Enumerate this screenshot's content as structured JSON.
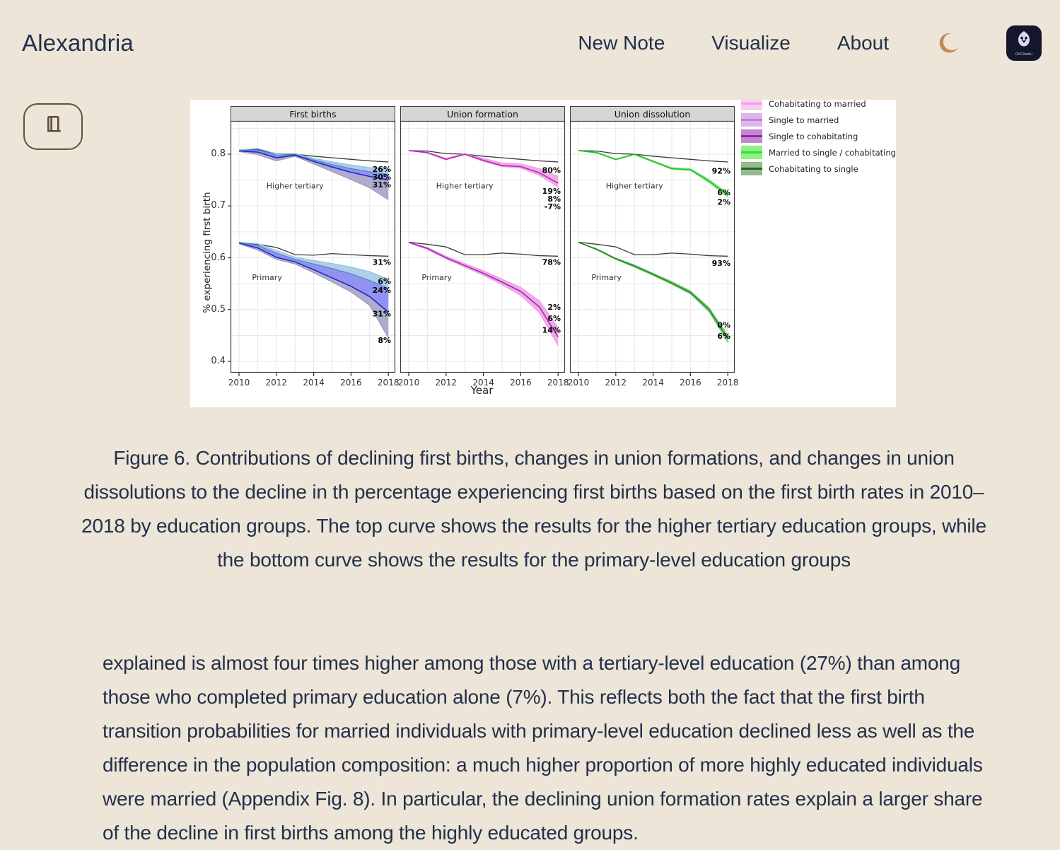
{
  "app": {
    "title": "Alexandria"
  },
  "nav": {
    "new_note": "New Note",
    "visualize": "Visualize",
    "about": "About",
    "logo_text": "GitCitadel"
  },
  "colors": {
    "background": "#ede5d8",
    "text": "#22304a",
    "moon": "#bf8a50",
    "logo_bg": "#14172b",
    "reader_border": "#64513a",
    "figure_bg": "#ffffff"
  },
  "figure": {
    "caption": "Figure 6. Contributions of declining first births, changes in union formations, and changes in union dissolutions to the decline in th percentage experiencing first births based on the first birth rates in 2010–2018 by education groups. The top curve shows the results for the higher tertiary education groups, while the bottom curve shows the results for the primary-level education groups"
  },
  "article": {
    "paragraph": "explained is almost four times higher among those with a tertiary-level education (27%) than among those who completed primary education alone (7%). This reflects both the fact that the first birth transition probabilities for married individuals with primary-level education declined less as well as the difference in the population composition: a much higher proportion of more highly educated individuals were married (Appendix Fig. 8). In",
    "paragraph_continued": "particular, the declining union formation rates explain a larger share of the decline in first births among the highly educated groups."
  },
  "chart_data": {
    "type": "line",
    "xlabel": "Year",
    "ylabel": "% experiencing first birth",
    "x": [
      2010,
      2011,
      2012,
      2013,
      2014,
      2015,
      2016,
      2017,
      2018
    ],
    "x_ticks": [
      2010,
      2012,
      2014,
      2016,
      2018
    ],
    "y_ticks": [
      0.8,
      0.7,
      0.6,
      0.5,
      0.4
    ],
    "ylim": [
      0.38,
      0.86
    ],
    "grid": true,
    "legend_position": "top-right",
    "legend": [
      {
        "label": "Cohabitating to married",
        "fill": "#f9cef3",
        "line": "#f2a0e0"
      },
      {
        "label": "Single to married",
        "fill": "#ddb7e8",
        "line": "#c07fd4"
      },
      {
        "label": "Single to cohabitating",
        "fill": "#c287d0",
        "line": "#8e2a9e"
      },
      {
        "label": "Married to single / cohabitating",
        "fill": "#8df281",
        "line": "#3cd83c"
      },
      {
        "label": "Cohabitating to single",
        "fill": "#93bc8e",
        "line": "#2c5e2e"
      }
    ],
    "panels": [
      {
        "title": "First births",
        "groups": [
          {
            "label": "Higher tertiary",
            "label_pos": {
              "x": 2013,
              "v": 0.734
            },
            "ref": [
              0.807,
              0.809,
              0.801,
              0.8,
              0.796,
              0.793,
              0.79,
              0.787,
              0.785
            ],
            "bands": [
              {
                "fill": "#a9cde6",
                "top": [
                  0.808,
                  0.811,
                  0.801,
                  0.801,
                  0.792,
                  0.785,
                  0.779,
                  0.774,
                  0.771
                ],
                "bottom": [
                  0.807,
                  0.808,
                  0.798,
                  0.799,
                  0.789,
                  0.78,
                  0.772,
                  0.766,
                  0.761
                ]
              },
              {
                "fill": "#8a8df0",
                "top": [
                  0.807,
                  0.808,
                  0.798,
                  0.799,
                  0.789,
                  0.78,
                  0.772,
                  0.766,
                  0.761
                ],
                "bottom": [
                  0.806,
                  0.804,
                  0.793,
                  0.798,
                  0.786,
                  0.775,
                  0.765,
                  0.757,
                  0.75
                ]
              },
              {
                "fill": "#aaa8c8",
                "top": [
                  0.806,
                  0.804,
                  0.793,
                  0.798,
                  0.786,
                  0.775,
                  0.765,
                  0.757,
                  0.75
                ],
                "bottom": [
                  0.805,
                  0.799,
                  0.787,
                  0.796,
                  0.781,
                  0.766,
                  0.751,
                  0.735,
                  0.712
                ]
              }
            ],
            "lines": [
              {
                "color": "#8fc2e2",
                "width": 1.2,
                "values": [
                  0.808,
                  0.811,
                  0.801,
                  0.801,
                  0.792,
                  0.785,
                  0.779,
                  0.774,
                  0.771
                ]
              },
              {
                "color": "#5b80c0",
                "width": 1.2,
                "values": [
                  0.807,
                  0.808,
                  0.798,
                  0.799,
                  0.789,
                  0.78,
                  0.772,
                  0.766,
                  0.761
                ]
              },
              {
                "color": "#2127cc",
                "width": 1.6,
                "values": [
                  0.806,
                  0.804,
                  0.793,
                  0.798,
                  0.786,
                  0.775,
                  0.765,
                  0.757,
                  0.75
                ]
              },
              {
                "color": "#9a98b8",
                "width": 1.1,
                "values": [
                  0.805,
                  0.799,
                  0.787,
                  0.796,
                  0.781,
                  0.766,
                  0.751,
                  0.735,
                  0.712
                ]
              }
            ],
            "annotations": [
              {
                "label": "26%",
                "v": 0.771
              },
              {
                "label": "30%",
                "v": 0.756
              },
              {
                "label": "31%",
                "v": 0.741
              }
            ]
          },
          {
            "label": "Primary",
            "label_pos": {
              "x": 2011.5,
              "v": 0.557
            },
            "ref": [
              0.63,
              0.626,
              0.62,
              0.606,
              0.605,
              0.608,
              0.606,
              0.604,
              0.603
            ],
            "bands": [
              {
                "fill": "#a9cde6",
                "top": [
                  0.63,
                  0.627,
                  0.614,
                  0.601,
                  0.595,
                  0.589,
                  0.582,
                  0.573,
                  0.559
                ],
                "bottom": [
                  0.629,
                  0.624,
                  0.609,
                  0.597,
                  0.588,
                  0.579,
                  0.569,
                  0.556,
                  0.541
                ]
              },
              {
                "fill": "#8a8df0",
                "top": [
                  0.629,
                  0.624,
                  0.609,
                  0.597,
                  0.588,
                  0.579,
                  0.569,
                  0.556,
                  0.541
                ],
                "bottom": [
                  0.628,
                  0.619,
                  0.601,
                  0.592,
                  0.577,
                  0.561,
                  0.545,
                  0.525,
                  0.495
                ]
              },
              {
                "fill": "#aaa8c8",
                "top": [
                  0.628,
                  0.619,
                  0.601,
                  0.592,
                  0.577,
                  0.561,
                  0.545,
                  0.525,
                  0.495
                ],
                "bottom": [
                  0.627,
                  0.615,
                  0.597,
                  0.588,
                  0.571,
                  0.553,
                  0.534,
                  0.508,
                  0.445
                ]
              }
            ],
            "lines": [
              {
                "color": "#8fc2e2",
                "width": 1.2,
                "values": [
                  0.63,
                  0.627,
                  0.614,
                  0.601,
                  0.595,
                  0.589,
                  0.582,
                  0.573,
                  0.559
                ]
              },
              {
                "color": "#5b80c0",
                "width": 1.2,
                "values": [
                  0.629,
                  0.624,
                  0.609,
                  0.597,
                  0.588,
                  0.579,
                  0.569,
                  0.556,
                  0.541
                ]
              },
              {
                "color": "#2127cc",
                "width": 1.6,
                "values": [
                  0.628,
                  0.619,
                  0.601,
                  0.592,
                  0.577,
                  0.561,
                  0.545,
                  0.525,
                  0.495
                ]
              },
              {
                "color": "#9a98b8",
                "width": 1.1,
                "values": [
                  0.627,
                  0.615,
                  0.597,
                  0.588,
                  0.571,
                  0.553,
                  0.534,
                  0.508,
                  0.445
                ]
              }
            ],
            "annotations": [
              {
                "label": "31%",
                "v": 0.592
              },
              {
                "label": "6%",
                "v": 0.555
              },
              {
                "label": "24%",
                "v": 0.538
              },
              {
                "label": "31%",
                "v": 0.492
              },
              {
                "label": "8%",
                "v": 0.441
              }
            ]
          }
        ]
      },
      {
        "title": "Union formation",
        "groups": [
          {
            "label": "Higher tertiary",
            "label_pos": {
              "x": 2013,
              "v": 0.734
            },
            "ref": [
              0.807,
              0.806,
              0.801,
              0.8,
              0.796,
              0.793,
              0.79,
              0.787,
              0.785
            ],
            "bands": [
              {
                "fill": "#f2a9e6",
                "top": [
                  0.807,
                  0.804,
                  0.792,
                  0.801,
                  0.792,
                  0.783,
                  0.781,
                  0.772,
                  0.757
                ],
                "bottom": [
                  0.807,
                  0.802,
                  0.789,
                  0.799,
                  0.786,
                  0.776,
                  0.773,
                  0.759,
                  0.737
                ]
              }
            ],
            "lines": [
              {
                "color": "#ee97e2",
                "width": 1.0,
                "values": [
                  0.807,
                  0.804,
                  0.792,
                  0.801,
                  0.792,
                  0.783,
                  0.781,
                  0.772,
                  0.757
                ]
              },
              {
                "color": "#ee97e2",
                "width": 1.0,
                "values": [
                  0.807,
                  0.802,
                  0.789,
                  0.799,
                  0.786,
                  0.776,
                  0.773,
                  0.759,
                  0.737
                ]
              },
              {
                "color": "#bb2cbb",
                "width": 1.7,
                "values": [
                  0.807,
                  0.803,
                  0.79,
                  0.8,
                  0.788,
                  0.778,
                  0.776,
                  0.764,
                  0.744
                ]
              }
            ],
            "annotations": [
              {
                "label": "80%",
                "v": 0.769
              },
              {
                "label": "19%",
                "v": 0.729
              },
              {
                "label": "8%",
                "v": 0.714
              },
              {
                "label": "-7%",
                "v": 0.699
              }
            ]
          },
          {
            "label": "Primary",
            "label_pos": {
              "x": 2011.5,
              "v": 0.557
            },
            "ref": [
              0.63,
              0.626,
              0.621,
              0.606,
              0.606,
              0.609,
              0.607,
              0.604,
              0.603
            ],
            "bands": [
              {
                "fill": "#f0a9e8",
                "top": [
                  0.63,
                  0.62,
                  0.603,
                  0.589,
                  0.575,
                  0.559,
                  0.543,
                  0.517,
                  0.465
                ],
                "bottom": [
                  0.629,
                  0.616,
                  0.598,
                  0.582,
                  0.566,
                  0.548,
                  0.527,
                  0.494,
                  0.43
                ]
              }
            ],
            "lines": [
              {
                "color": "#ee97e2",
                "width": 1.0,
                "values": [
                  0.63,
                  0.62,
                  0.603,
                  0.589,
                  0.575,
                  0.559,
                  0.543,
                  0.517,
                  0.465
                ]
              },
              {
                "color": "#ee97e2",
                "width": 1.0,
                "values": [
                  0.629,
                  0.616,
                  0.598,
                  0.582,
                  0.566,
                  0.548,
                  0.527,
                  0.494,
                  0.43
                ]
              },
              {
                "color": "#a62cb4",
                "width": 1.7,
                "values": [
                  0.63,
                  0.618,
                  0.6,
                  0.585,
                  0.57,
                  0.553,
                  0.535,
                  0.505,
                  0.447
                ]
              }
            ],
            "annotations": [
              {
                "label": "78%",
                "v": 0.592
              },
              {
                "label": "2%",
                "v": 0.505
              },
              {
                "label": "6%",
                "v": 0.483
              },
              {
                "label": "14%",
                "v": 0.461
              }
            ]
          }
        ]
      },
      {
        "title": "Union dissolution",
        "groups": [
          {
            "label": "Higher tertiary",
            "label_pos": {
              "x": 2013,
              "v": 0.734
            },
            "ref": [
              0.807,
              0.806,
              0.801,
              0.8,
              0.796,
              0.793,
              0.79,
              0.787,
              0.785
            ],
            "bands": [
              {
                "fill": "#8fe08f",
                "top": [
                  0.808,
                  0.804,
                  0.791,
                  0.801,
                  0.788,
                  0.775,
                  0.773,
                  0.752,
                  0.726
                ],
                "bottom": [
                  0.806,
                  0.801,
                  0.788,
                  0.798,
                  0.784,
                  0.77,
                  0.768,
                  0.744,
                  0.716
                ]
              }
            ],
            "lines": [
              {
                "color": "#27c427",
                "width": 1.8,
                "values": [
                  0.807,
                  0.803,
                  0.79,
                  0.8,
                  0.786,
                  0.772,
                  0.77,
                  0.748,
                  0.721
                ]
              }
            ],
            "annotations": [
              {
                "label": "92%",
                "v": 0.768
              },
              {
                "label": "6%",
                "v": 0.726
              },
              {
                "label": "2%",
                "v": 0.708
              }
            ]
          },
          {
            "label": "Primary",
            "label_pos": {
              "x": 2011.5,
              "v": 0.557
            },
            "ref": [
              0.63,
              0.626,
              0.621,
              0.606,
              0.606,
              0.609,
              0.607,
              0.604,
              0.603
            ],
            "bands": [
              {
                "fill": "#7cc87c",
                "top": [
                  0.63,
                  0.618,
                  0.6,
                  0.587,
                  0.571,
                  0.555,
                  0.537,
                  0.505,
                  0.452
                ],
                "bottom": [
                  0.629,
                  0.614,
                  0.596,
                  0.581,
                  0.565,
                  0.548,
                  0.529,
                  0.494,
                  0.435
                ]
              }
            ],
            "lines": [
              {
                "color": "#1e8f1e",
                "width": 1.7,
                "values": [
                  0.63,
                  0.616,
                  0.598,
                  0.584,
                  0.568,
                  0.551,
                  0.533,
                  0.5,
                  0.444
                ]
              }
            ],
            "annotations": [
              {
                "label": "93%",
                "v": 0.59
              },
              {
                "label": "0%",
                "v": 0.47
              },
              {
                "label": "6%",
                "v": 0.449
              }
            ]
          }
        ]
      }
    ]
  }
}
